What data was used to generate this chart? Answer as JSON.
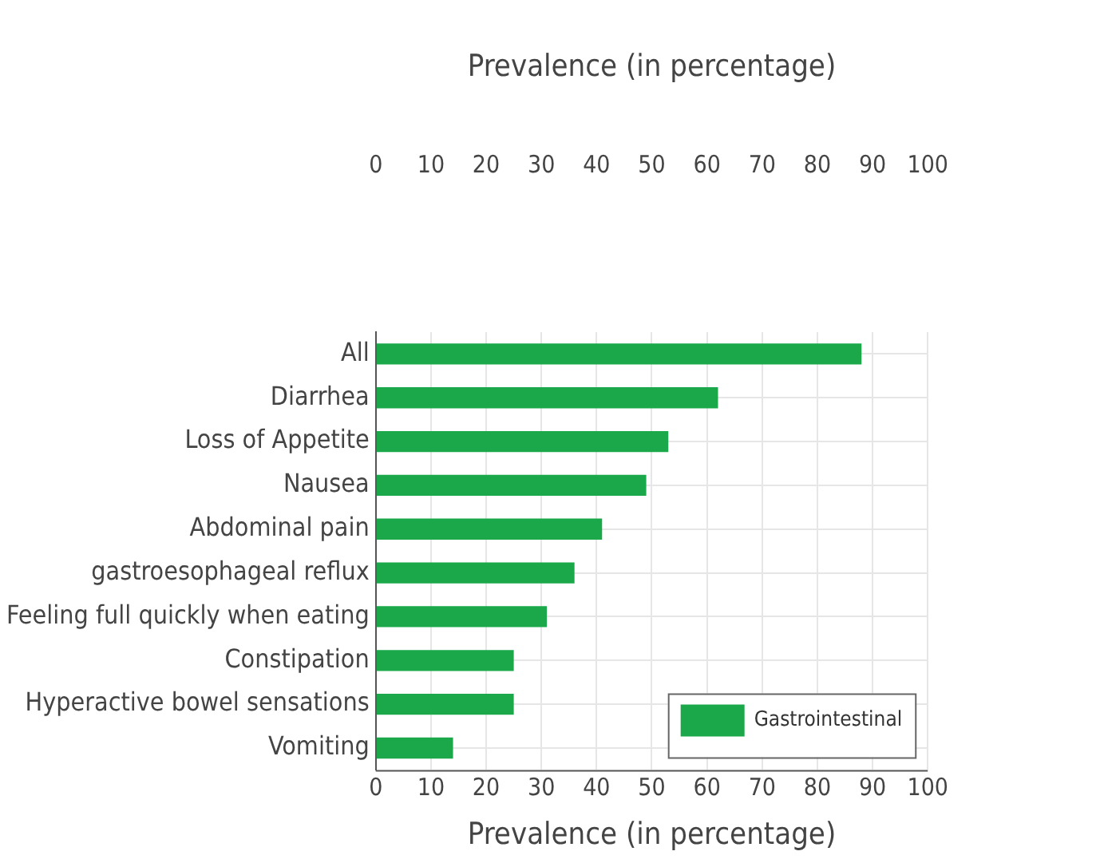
{
  "chart_data": {
    "type": "bar",
    "orientation": "horizontal",
    "categories": [
      "All",
      "Diarrhea",
      "Loss of Appetite",
      "Nausea",
      "Abdominal pain",
      "gastroesophageal reflux",
      "Feeling full quickly when eating",
      "Constipation",
      "Hyperactive bowel sensations",
      "Vomiting"
    ],
    "series": [
      {
        "name": "Gastrointestinal",
        "color": "#1aa84a",
        "values": [
          88,
          62,
          53,
          49,
          41,
          36,
          31,
          25,
          25,
          14
        ]
      }
    ],
    "xlim": [
      0,
      100
    ],
    "xticks": [
      0,
      10,
      20,
      30,
      40,
      50,
      60,
      70,
      80,
      90,
      100
    ],
    "xlabel": "Prevalence (in percentage)",
    "x2lim": [
      0,
      100
    ],
    "x2ticks": [
      0,
      10,
      20,
      30,
      40,
      50,
      60,
      70,
      80,
      90,
      100
    ],
    "x2label": "Prevalence (in percentage)",
    "grid": true,
    "legend": "bottom right"
  }
}
